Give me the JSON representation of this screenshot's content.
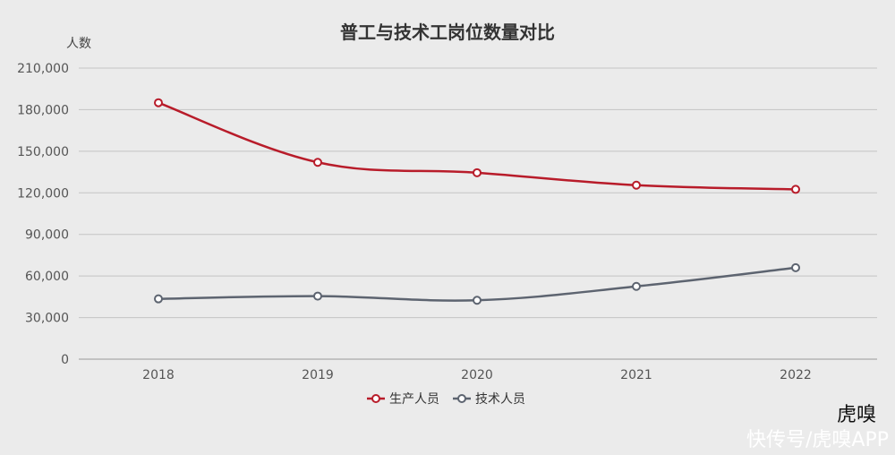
{
  "chart_data": {
    "type": "line",
    "title": "普工与技术工岗位数量对比",
    "ylabel": "人数",
    "xlabel": "",
    "categories": [
      "2018",
      "2019",
      "2020",
      "2021",
      "2022"
    ],
    "ylim": [
      0,
      210000
    ],
    "yticks": [
      0,
      30000,
      60000,
      90000,
      120000,
      150000,
      180000,
      210000
    ],
    "ytick_labels": [
      "0",
      "30,000",
      "60,000",
      "90,000",
      "120,000",
      "150,000",
      "180,000",
      "210,000"
    ],
    "grid": true,
    "legend_position": "bottom-center",
    "series": [
      {
        "name": "生产人员",
        "color": "#b81c2a",
        "values": [
          185000,
          142000,
          134500,
          125500,
          122500
        ]
      },
      {
        "name": "技术人员",
        "color": "#5d6470",
        "values": [
          43500,
          45500,
          42500,
          52500,
          66000
        ]
      }
    ]
  },
  "watermark": {
    "logo_text": "虎嗅",
    "caption": "快传号/虎嗅APP"
  }
}
